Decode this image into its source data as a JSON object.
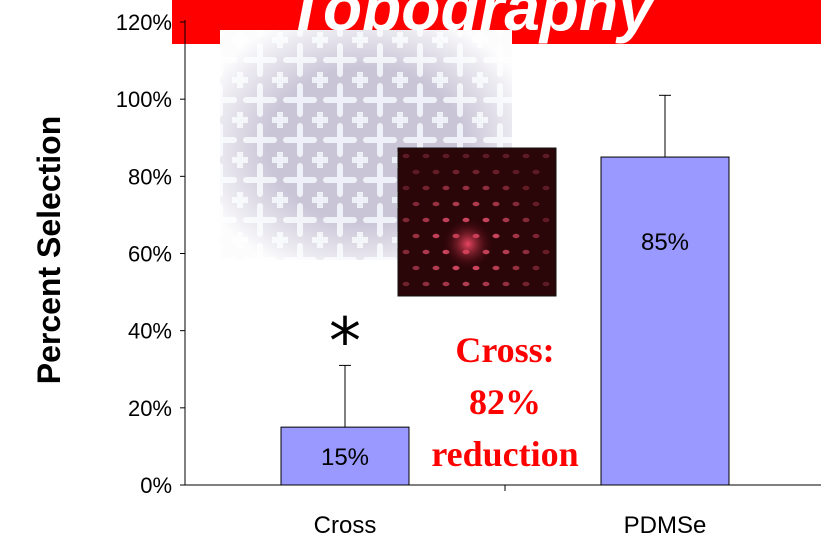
{
  "banner": {
    "text": "Topography",
    "bg_color": "#ff0000"
  },
  "chart_data": {
    "type": "bar",
    "categories": [
      "Cross",
      "PDMSe"
    ],
    "values": [
      15,
      85
    ],
    "error_upper": [
      31,
      101
    ],
    "value_labels": [
      "15%",
      "85%"
    ],
    "ylabel": "Percent Selection",
    "ylim": [
      0,
      120
    ],
    "yticks": [
      0,
      20,
      40,
      60,
      80,
      100,
      120
    ],
    "ytick_labels": [
      "0%",
      "20%",
      "40%",
      "60%",
      "80%",
      "100%",
      "120%"
    ],
    "bar_color": "#9999ff",
    "significance_marker": "*",
    "grid": false
  },
  "annotation": {
    "lines": [
      "Cross:",
      "82%",
      "reduction"
    ],
    "color": "#ff0000"
  },
  "images": {
    "top": "topography-micrograph",
    "inset": "fluorescence-micrograph"
  }
}
